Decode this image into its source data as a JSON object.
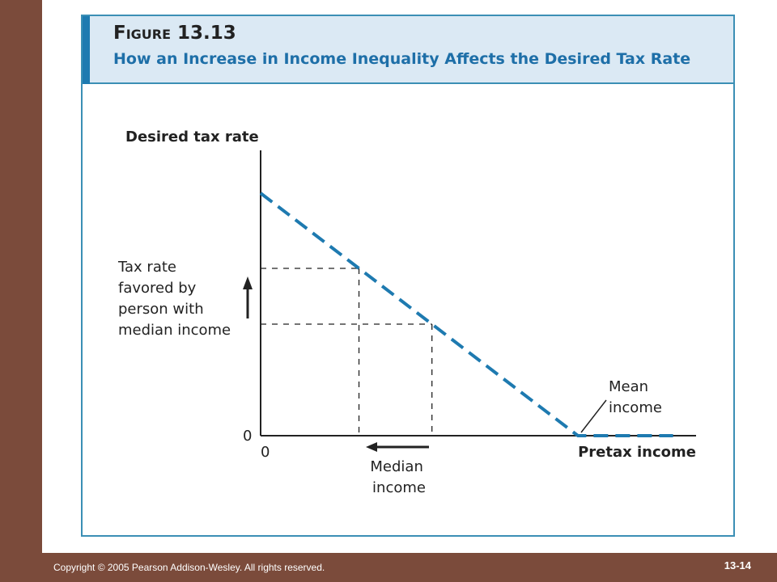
{
  "figure": {
    "number": "Figure 13.13",
    "title": "How an Increase in Income Inequality Affects the Desired Tax Rate"
  },
  "chart_data": {
    "type": "line",
    "ylabel": "Desired tax rate",
    "xlabel": "Pretax income",
    "x_origin_label": "0",
    "y_origin_label": "0",
    "grid": false,
    "series": [
      {
        "x": [
          0,
          1,
          1.3
        ],
        "y": [
          1,
          0,
          0
        ],
        "style": "dashed",
        "color": "#1e7ab0"
      }
    ],
    "reference_points": [
      {
        "x": 0.31,
        "y": 0.69
      },
      {
        "x": 0.54,
        "y": 0.46
      }
    ],
    "annotations": {
      "tax_rate_label": [
        "Tax rate",
        "favored by",
        "person with",
        "median income"
      ],
      "median_label": [
        "Median",
        "income"
      ],
      "mean_label": [
        "Mean",
        "income"
      ],
      "median_shift": "left",
      "tax_rate_shift": "up"
    }
  },
  "footer": {
    "copyright": "Copyright © 2005 Pearson Addison-Wesley. All rights reserved.",
    "slide_number": "13-14"
  }
}
